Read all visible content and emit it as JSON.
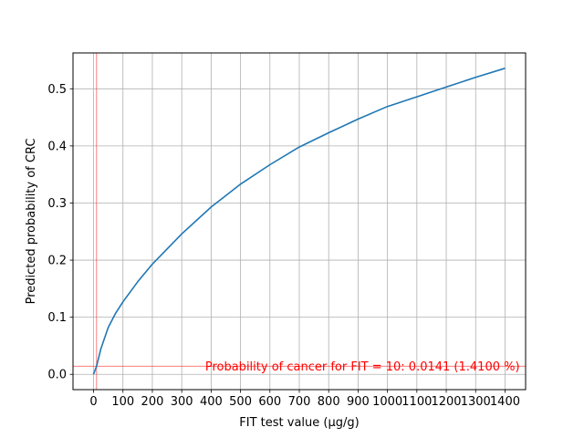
{
  "chart_data": {
    "type": "line",
    "title": "",
    "xlabel": "FIT test value (µg/g)",
    "ylabel": "Predicted probability of CRC",
    "xlim": [
      -70,
      1470
    ],
    "ylim": [
      -0.0268,
      0.5628
    ],
    "xticks": [
      0,
      100,
      200,
      300,
      400,
      500,
      600,
      700,
      800,
      900,
      1000,
      1100,
      1200,
      1300,
      1400
    ],
    "yticks": [
      0.0,
      0.1,
      0.2,
      0.3,
      0.4,
      0.5
    ],
    "ytick_labels": [
      "0.0",
      "0.1",
      "0.2",
      "0.3",
      "0.4",
      "0.5"
    ],
    "grid": true,
    "series": [
      {
        "color": "#1f77b4",
        "x": [
          0,
          10,
          25,
          50,
          75,
          100,
          150,
          200,
          300,
          400,
          500,
          600,
          700,
          800,
          900,
          1000,
          1100,
          1200,
          1300,
          1400
        ],
        "y": [
          0.0,
          0.0141,
          0.045,
          0.082,
          0.107,
          0.127,
          0.162,
          0.193,
          0.246,
          0.293,
          0.333,
          0.367,
          0.398,
          0.423,
          0.447,
          0.469,
          0.486,
          0.503,
          0.52,
          0.536
        ]
      }
    ],
    "reference_lines": {
      "color": "#ff0000",
      "vertical_x": 10,
      "horizontal_y": 0.0141
    },
    "annotation": {
      "text": "Probability of cancer for FIT = 10: 0.0141 (1.4100 %)",
      "color": "#ff0000",
      "x": 1450,
      "y": 0.0141
    }
  }
}
